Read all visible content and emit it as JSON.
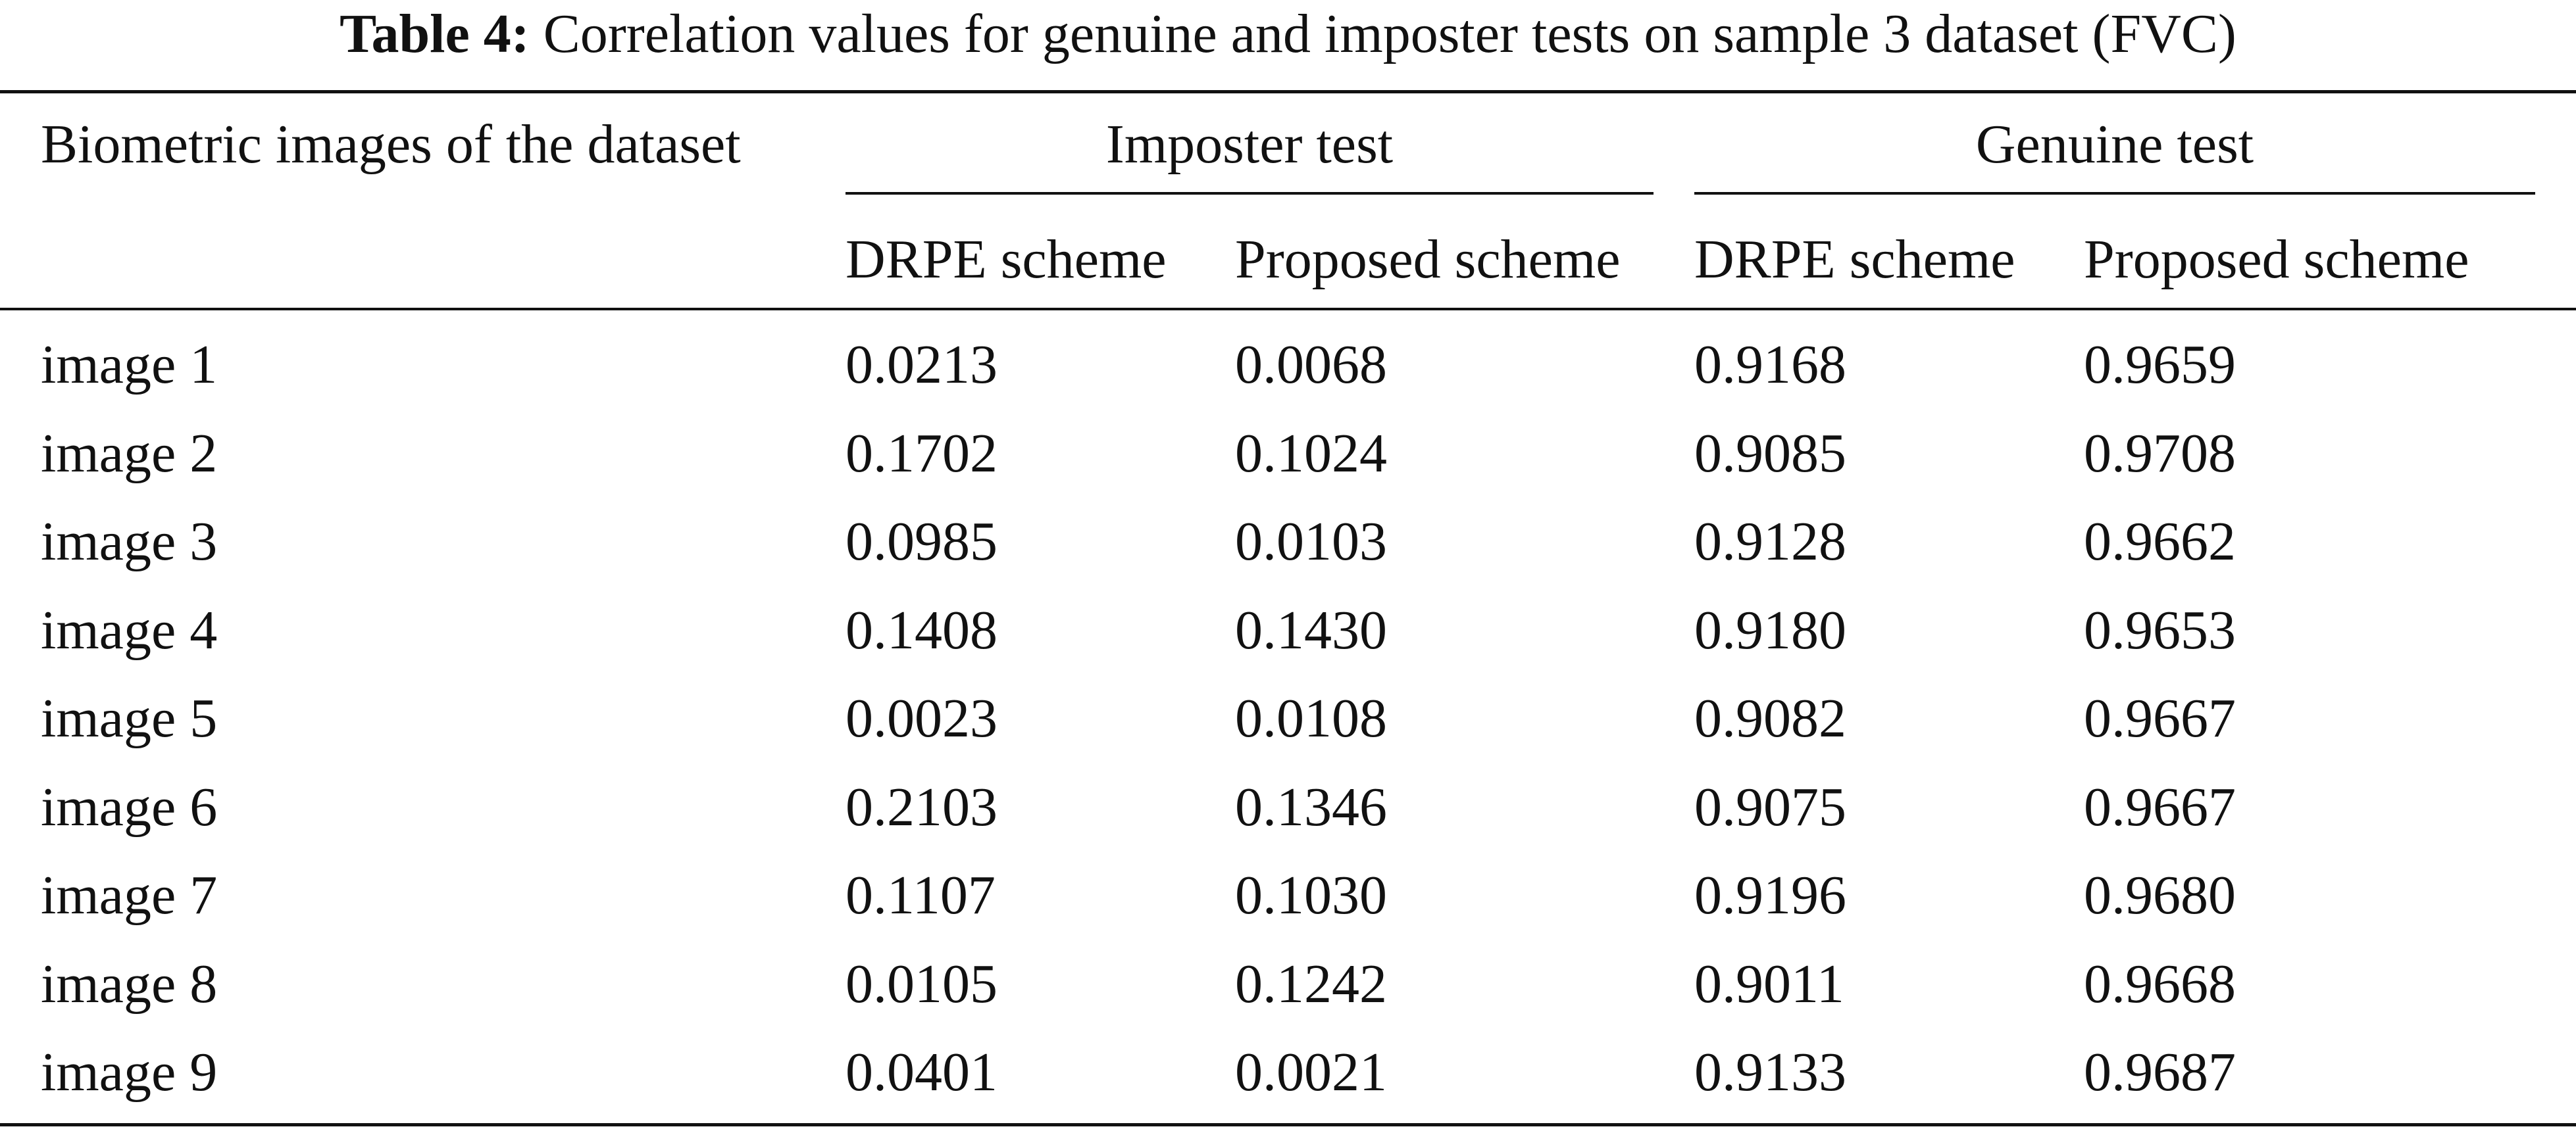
{
  "caption": {
    "label": "Table 4:",
    "text": "Correlation values for genuine and imposter tests on sample 3 dataset (FVC)"
  },
  "header": {
    "row_label": "Biometric images of the dataset",
    "group_imposter": "Imposter test",
    "group_genuine": "Genuine test",
    "imp_drpe": "DRPE scheme",
    "imp_proposed": "Proposed scheme",
    "gen_drpe": "DRPE scheme",
    "gen_proposed": "Proposed scheme"
  },
  "rows": [
    {
      "image": "image 1",
      "imp_drpe": "0.0213",
      "imp_proposed": "0.0068",
      "gen_drpe": "0.9168",
      "gen_proposed": "0.9659"
    },
    {
      "image": "image 2",
      "imp_drpe": "0.1702",
      "imp_proposed": "0.1024",
      "gen_drpe": "0.9085",
      "gen_proposed": "0.9708"
    },
    {
      "image": "image 3",
      "imp_drpe": "0.0985",
      "imp_proposed": "0.0103",
      "gen_drpe": "0.9128",
      "gen_proposed": "0.9662"
    },
    {
      "image": "image 4",
      "imp_drpe": "0.1408",
      "imp_proposed": "0.1430",
      "gen_drpe": "0.9180",
      "gen_proposed": "0.9653"
    },
    {
      "image": "image 5",
      "imp_drpe": "0.0023",
      "imp_proposed": "0.0108",
      "gen_drpe": "0.9082",
      "gen_proposed": "0.9667"
    },
    {
      "image": "image 6",
      "imp_drpe": "0.2103",
      "imp_proposed": "0.1346",
      "gen_drpe": "0.9075",
      "gen_proposed": "0.9667"
    },
    {
      "image": "image 7",
      "imp_drpe": "0.1107",
      "imp_proposed": "0.1030",
      "gen_drpe": "0.9196",
      "gen_proposed": "0.9680"
    },
    {
      "image": "image 8",
      "imp_drpe": "0.0105",
      "imp_proposed": "0.1242",
      "gen_drpe": "0.9011",
      "gen_proposed": "0.9668"
    },
    {
      "image": "image 9",
      "imp_drpe": "0.0401",
      "imp_proposed": "0.0021",
      "gen_drpe": "0.9133",
      "gen_proposed": "0.9687"
    }
  ]
}
